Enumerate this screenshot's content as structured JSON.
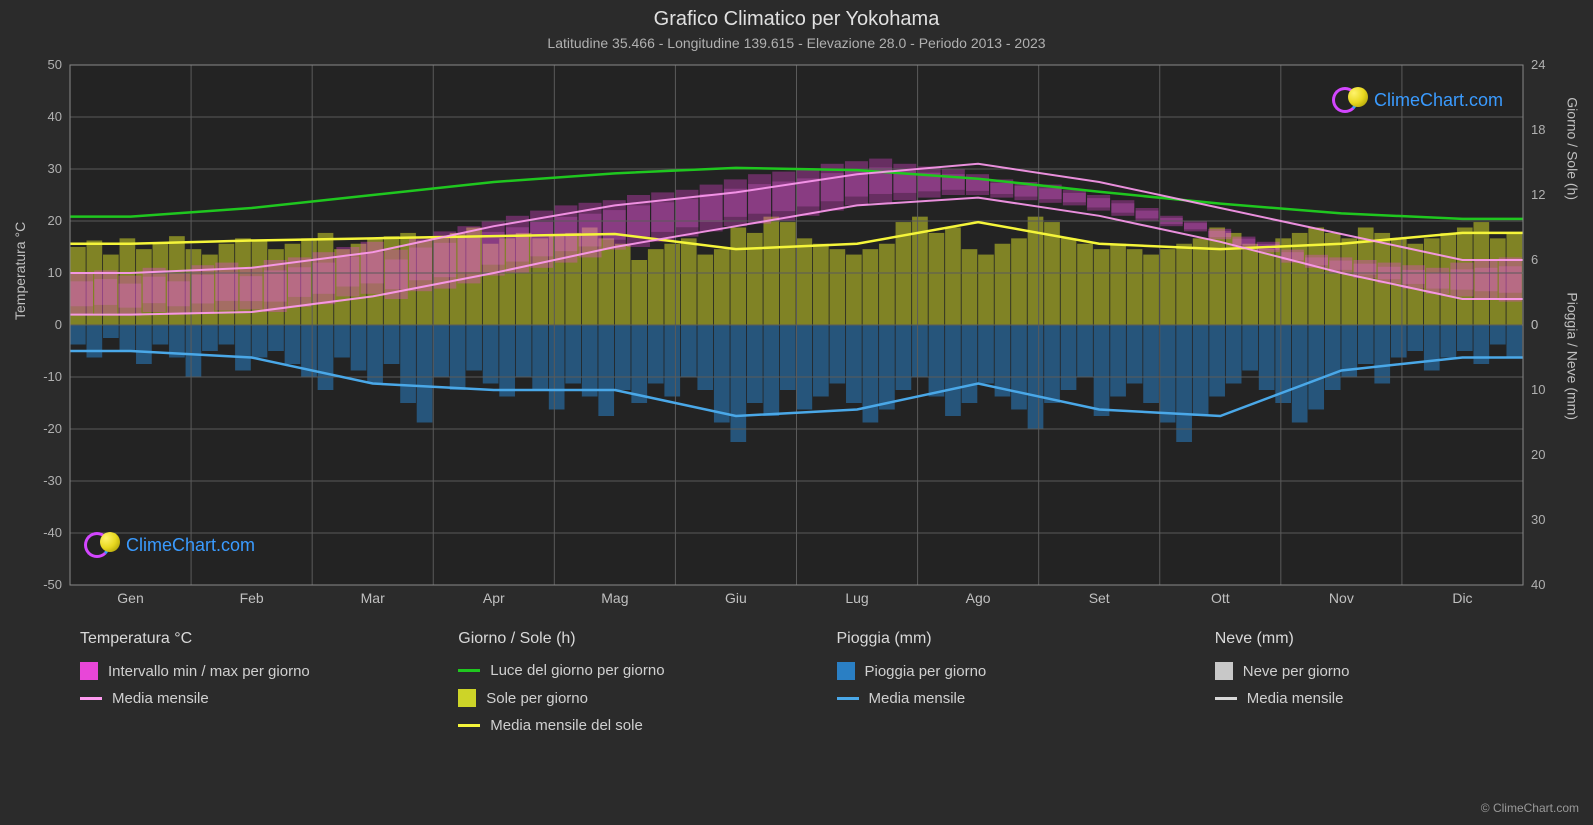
{
  "title": "Grafico Climatico per Yokohama",
  "subtitle": "Latitudine 35.466 - Longitudine 139.615 - Elevazione 28.0 - Periodo 2013 - 2023",
  "watermark_text": "ClimeChart.com",
  "copyright": "© ClimeChart.com",
  "axis_left_label": "Temperatura °C",
  "axis_right_top_label": "Giorno / Sole (h)",
  "axis_right_bottom_label": "Pioggia / Neve (mm)",
  "chart": {
    "background": "#2b2b2b",
    "plot_background": "#232323",
    "grid_color": "#5a5a5a",
    "text_color": "#c0c0c0",
    "months": [
      "Gen",
      "Feb",
      "Mar",
      "Apr",
      "Mag",
      "Giu",
      "Lug",
      "Ago",
      "Set",
      "Ott",
      "Nov",
      "Dic"
    ],
    "temp_axis": {
      "min": -50,
      "max": 50,
      "step": 10
    },
    "day_sun_axis": {
      "min": 0,
      "max": 24,
      "step": 6,
      "maps_to_temp": [
        0,
        50
      ]
    },
    "rain_snow_axis": {
      "values_mm": [
        0,
        10,
        20,
        30,
        40
      ],
      "maps_to_temp": [
        0,
        -50
      ]
    },
    "colors": {
      "temp_range": "#e846d8",
      "temp_range_glow": "#f066e8",
      "temp_mean_line": "#ff9bf1",
      "daylight_line": "#1fc71f",
      "sun_bars": "#cdd428",
      "sun_mean_line": "#f5f53a",
      "rain_bars": "#2a7fc4",
      "rain_mean_line": "#4aa8e8",
      "snow_bars": "#c8c8c8",
      "snow_mean_line": "#d8d8d8"
    },
    "series": {
      "temp_min_monthly": [
        2,
        2.5,
        5.5,
        10,
        15,
        19,
        23,
        24.5,
        21,
        16,
        10,
        5
      ],
      "temp_max_monthly": [
        10,
        11,
        14,
        19,
        23,
        25.5,
        29,
        31,
        27.5,
        22.5,
        17.5,
        12.5
      ],
      "temp_mean_monthly": [
        5.5,
        6,
        9.5,
        14,
        18.5,
        21.5,
        25.5,
        27,
        24,
        19,
        13.5,
        8.5
      ],
      "daylight_hours_monthly": [
        10,
        10.8,
        12,
        13.2,
        14,
        14.5,
        14.3,
        13.5,
        12.3,
        11.2,
        10.3,
        9.8
      ],
      "sun_hours_mean_monthly": [
        7.5,
        7.8,
        8,
        8.2,
        8.4,
        7,
        7.5,
        9.5,
        7.5,
        7,
        7.5,
        8.5
      ],
      "rain_mean_mm_monthly": [
        4,
        5,
        9,
        10,
        10,
        14,
        13,
        9,
        13,
        14,
        7,
        5
      ],
      "sun_hours_daily": [
        7.2,
        7.8,
        6.5,
        8,
        7,
        7.5,
        8.2,
        7,
        6.5,
        7.5,
        8,
        7.8,
        7,
        7.5,
        8,
        8.5,
        7,
        7.5,
        8,
        8.2,
        8.5,
        7.8,
        8,
        8.5,
        9,
        7.5,
        8,
        8.5,
        8,
        8.2,
        8.5,
        9,
        8,
        7.5,
        6,
        7,
        7.5,
        8,
        6.5,
        7,
        9,
        8.5,
        10,
        9.5,
        8,
        7.5,
        7,
        6.5,
        7,
        7.5,
        9.5,
        10,
        8.5,
        9,
        7,
        6.5,
        7.5,
        8,
        10,
        9.5,
        8,
        7.5,
        7,
        7.5,
        7,
        6.5,
        7,
        7.5,
        8,
        9,
        8.5,
        7.5,
        7,
        8,
        8.5,
        9,
        8.5,
        8,
        9,
        8.5,
        8,
        7.5,
        8,
        8.5,
        9,
        9.5,
        8,
        8.5
      ],
      "rain_daily_mm": [
        3,
        5,
        2,
        4,
        6,
        3,
        5,
        8,
        4,
        3,
        7,
        5,
        4,
        6,
        8,
        10,
        5,
        7,
        9,
        6,
        12,
        15,
        8,
        10,
        7,
        9,
        11,
        8,
        10,
        13,
        9,
        11,
        14,
        10,
        12,
        9,
        11,
        8,
        10,
        15,
        18,
        12,
        14,
        10,
        13,
        11,
        9,
        12,
        15,
        13,
        10,
        8,
        11,
        14,
        12,
        9,
        11,
        13,
        16,
        12,
        10,
        8,
        14,
        11,
        9,
        12,
        15,
        18,
        14,
        11,
        9,
        7,
        10,
        12,
        15,
        13,
        10,
        8,
        6,
        9,
        5,
        4,
        7,
        5,
        4,
        6,
        3,
        5
      ],
      "temp_min_daily": [
        2,
        2.2,
        1.8,
        2.5,
        2,
        2.3,
        2.8,
        3,
        2.5,
        3.5,
        4,
        5.5,
        6,
        5,
        6.5,
        7,
        8,
        9.5,
        10,
        11,
        12,
        13,
        14.5,
        15,
        16,
        17,
        18,
        19,
        19.5,
        20,
        21,
        22,
        23,
        23.5,
        24,
        24.5,
        25,
        25,
        24.5,
        24,
        23.5,
        23,
        22,
        21,
        20,
        19,
        18,
        16.5,
        15,
        14,
        12,
        11,
        10,
        9,
        8,
        7,
        6,
        5.5,
        5,
        4.5
      ],
      "temp_max_daily": [
        10,
        10.5,
        9.5,
        11,
        10,
        11.5,
        12,
        11,
        12.5,
        13,
        14,
        15,
        16,
        14.5,
        17,
        18,
        19,
        20,
        21,
        22,
        23,
        23.5,
        24,
        25,
        25.5,
        26,
        27,
        28,
        29,
        29.5,
        30,
        31,
        31.5,
        32,
        31,
        30.5,
        30,
        29,
        28,
        27.5,
        27,
        26,
        25,
        24,
        22.5,
        21,
        20,
        18.5,
        17,
        16,
        14.5,
        13.5,
        13,
        12.5,
        12,
        11.5,
        11,
        12,
        12.5,
        13
      ]
    }
  },
  "legend": [
    {
      "header": "Temperatura °C",
      "items": [
        {
          "type": "swatch",
          "color": "#e846d8",
          "label": "Intervallo min / max per giorno"
        },
        {
          "type": "line",
          "color": "#ff9bf1",
          "label": "Media mensile"
        }
      ]
    },
    {
      "header": "Giorno / Sole (h)",
      "items": [
        {
          "type": "line",
          "color": "#1fc71f",
          "label": "Luce del giorno per giorno"
        },
        {
          "type": "swatch",
          "color": "#cdd428",
          "label": "Sole per giorno"
        },
        {
          "type": "line",
          "color": "#f5f53a",
          "label": "Media mensile del sole"
        }
      ]
    },
    {
      "header": "Pioggia (mm)",
      "items": [
        {
          "type": "swatch",
          "color": "#2a7fc4",
          "label": "Pioggia per giorno"
        },
        {
          "type": "line",
          "color": "#4aa8e8",
          "label": "Media mensile"
        }
      ]
    },
    {
      "header": "Neve (mm)",
      "items": [
        {
          "type": "swatch",
          "color": "#c8c8c8",
          "label": "Neve per giorno"
        },
        {
          "type": "line",
          "color": "#d8d8d8",
          "label": "Media mensile"
        }
      ]
    }
  ]
}
